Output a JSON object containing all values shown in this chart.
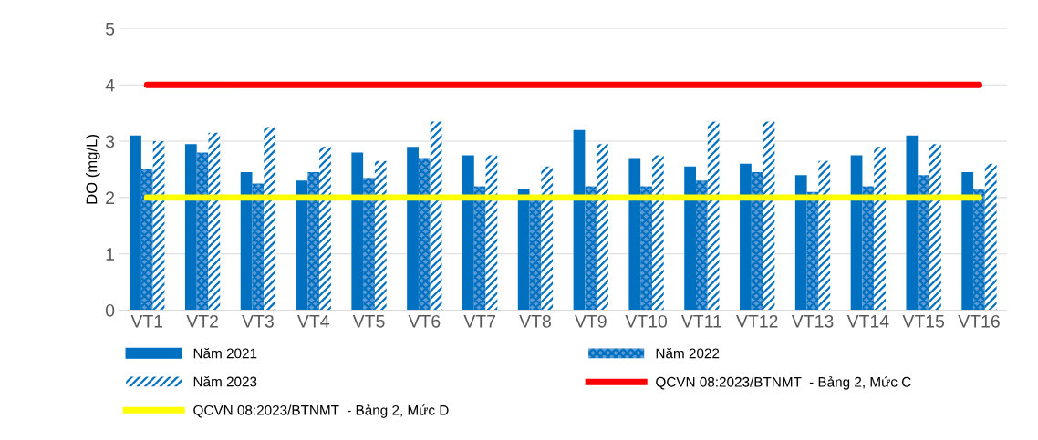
{
  "chart_data": {
    "type": "bar",
    "ylabel": "DO (mg/L)",
    "categories": [
      "VT1",
      "VT2",
      "VT3",
      "VT4",
      "VT5",
      "VT6",
      "VT7",
      "VT8",
      "VT9",
      "VT10",
      "VT11",
      "VT12",
      "VT13",
      "VT14",
      "VT15",
      "VT16"
    ],
    "series": [
      {
        "name": "Năm 2021",
        "color": "#0070c0",
        "values": [
          3.1,
          2.95,
          2.45,
          2.3,
          2.8,
          2.9,
          2.75,
          2.15,
          3.2,
          2.7,
          2.55,
          2.6,
          2.4,
          2.75,
          3.1,
          2.45
        ]
      },
      {
        "name": "Năm 2022",
        "color": "#0070c0",
        "values": [
          2.5,
          2.8,
          2.25,
          2.45,
          2.35,
          2.7,
          2.2,
          2.0,
          2.2,
          2.2,
          2.3,
          2.45,
          2.1,
          2.2,
          2.4,
          2.15
        ]
      },
      {
        "name": "Năm 2023",
        "color": "#0070c0",
        "values": [
          3.0,
          3.15,
          3.25,
          2.9,
          2.65,
          3.35,
          2.75,
          2.55,
          2.95,
          2.75,
          3.35,
          3.35,
          2.65,
          2.9,
          2.95,
          2.6
        ]
      },
      {
        "name": "QCVN 08:2023/BTNMT  - Bảng 2, Mức C",
        "type": "line",
        "color": "#ff0000",
        "values": [
          4,
          4,
          4,
          4,
          4,
          4,
          4,
          4,
          4,
          4,
          4,
          4,
          4,
          4,
          4,
          4
        ]
      },
      {
        "name": "QCVN 08:2023/BTNMT  - Bảng 2, Mức D",
        "type": "line",
        "color": "#ffff00",
        "values": [
          2,
          2,
          2,
          2,
          2,
          2,
          2,
          2,
          2,
          2,
          2,
          2,
          2,
          2,
          2,
          2
        ]
      }
    ],
    "ylim": [
      0,
      5
    ],
    "yticks": [
      0,
      1,
      2,
      3,
      4,
      5
    ],
    "grid": "y",
    "legend": "bottom"
  }
}
